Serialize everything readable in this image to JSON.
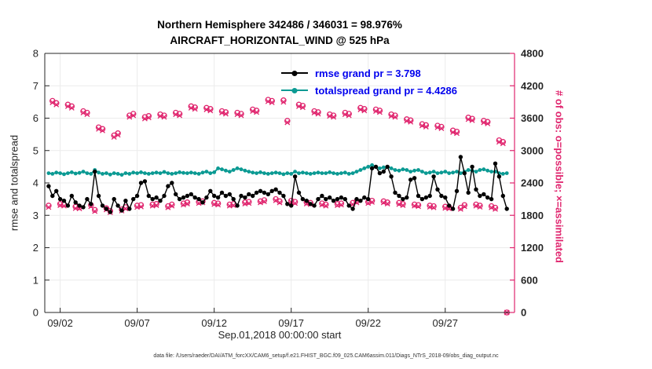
{
  "chart": {
    "title1": "Northern Hemisphere 342486 / 346031 = 98.976%",
    "title2": "AIRCRAFT_HORIZONTAL_WIND @ 525 hPa",
    "ylabel_left": "rmse and totalspread",
    "ylabel_right": "# of obs: o=possible; ×=assimilated",
    "xlabel": "Sep.01,2018 00:00:00 start",
    "footer": "data file: /Users/raeder/DAI/ATM_forcXX/CAM6_setup/f.e21.FHIST_BGC.f09_025.CAM6assim.011/Diags_NTrS_2018-09/obs_diag_output.nc",
    "legend": [
      {
        "label": "rmse grand pr = 3.798",
        "series": "rmse"
      },
      {
        "label": "totalspread grand pr = 4.4286",
        "series": "totalspread"
      }
    ]
  },
  "colors": {
    "rmse": "#000000",
    "totalspread": "#0b9a93",
    "obs": "#e0256e",
    "legend_text": "#0000ee",
    "axis": "#262626",
    "grid": "#ebebeb"
  },
  "chart_data": {
    "type": "line",
    "x_unit": "days since Sep 1 2018 00:00",
    "xlim": [
      0,
      30.5
    ],
    "ylim_left": [
      0,
      8
    ],
    "ylim_right": [
      0,
      4800
    ],
    "grid": true,
    "legend_position": "top-center",
    "xticks": {
      "positions": [
        1,
        6,
        11,
        16,
        21,
        26
      ],
      "labels": [
        "09/02",
        "09/07",
        "09/12",
        "09/17",
        "09/22",
        "09/27"
      ]
    },
    "yticks_left": [
      0,
      1,
      2,
      3,
      4,
      5,
      6,
      7,
      8
    ],
    "yticks_right": [
      0,
      600,
      1200,
      1800,
      2400,
      3000,
      3600,
      4200,
      4800
    ],
    "x_days": [
      0.25,
      0.5,
      0.75,
      1,
      1.25,
      1.5,
      1.75,
      2,
      2.25,
      2.5,
      2.75,
      3,
      3.25,
      3.5,
      3.75,
      4,
      4.25,
      4.5,
      4.75,
      5,
      5.25,
      5.5,
      5.75,
      6,
      6.25,
      6.5,
      6.75,
      7,
      7.25,
      7.5,
      7.75,
      8,
      8.25,
      8.5,
      8.75,
      9,
      9.25,
      9.5,
      9.75,
      10,
      10.25,
      10.5,
      10.75,
      11,
      11.25,
      11.5,
      11.75,
      12,
      12.25,
      12.5,
      12.75,
      13,
      13.25,
      13.5,
      13.75,
      14,
      14.25,
      14.5,
      14.75,
      15,
      15.25,
      15.5,
      15.75,
      16,
      16.25,
      16.5,
      16.75,
      17,
      17.25,
      17.5,
      17.75,
      18,
      18.25,
      18.5,
      18.75,
      19,
      19.25,
      19.5,
      19.75,
      20,
      20.25,
      20.5,
      20.75,
      21,
      21.25,
      21.5,
      21.75,
      22,
      22.25,
      22.5,
      22.75,
      23,
      23.25,
      23.5,
      23.75,
      24,
      24.25,
      24.5,
      24.75,
      25,
      25.25,
      25.5,
      25.75,
      26,
      26.25,
      26.5,
      26.75,
      27,
      27.25,
      27.5,
      27.75,
      28,
      28.25,
      28.5,
      28.75,
      29,
      29.25,
      29.5,
      29.75,
      30
    ],
    "series": [
      {
        "name": "rmse",
        "axis": "left",
        "color": "#000000",
        "marker": "dot",
        "line": true,
        "grand_value": 3.798,
        "values": [
          3.9,
          3.6,
          3.75,
          3.5,
          3.45,
          3.3,
          3.6,
          3.4,
          3.3,
          3.25,
          3.5,
          3.35,
          4.35,
          3.6,
          3.3,
          3.2,
          3.1,
          3.5,
          3.3,
          3.15,
          3.45,
          3.2,
          3.5,
          3.6,
          4.0,
          4.05,
          3.6,
          3.5,
          3.55,
          3.45,
          3.6,
          3.9,
          4.0,
          3.65,
          3.5,
          3.55,
          3.6,
          3.65,
          3.55,
          3.5,
          3.4,
          3.55,
          3.75,
          3.6,
          3.55,
          3.7,
          3.6,
          3.65,
          3.5,
          3.3,
          3.6,
          3.55,
          3.65,
          3.6,
          3.7,
          3.75,
          3.7,
          3.65,
          3.75,
          3.8,
          3.7,
          3.6,
          3.35,
          3.3,
          4.2,
          3.7,
          3.5,
          3.45,
          3.35,
          3.3,
          3.5,
          3.6,
          3.5,
          3.55,
          3.45,
          3.5,
          3.55,
          3.5,
          3.3,
          3.2,
          3.5,
          3.45,
          3.55,
          3.5,
          4.45,
          4.5,
          4.3,
          4.35,
          4.5,
          4.2,
          3.7,
          3.6,
          3.5,
          3.55,
          4.1,
          4.15,
          3.6,
          3.5,
          3.55,
          3.6,
          4.2,
          3.8,
          3.6,
          3.55,
          3.3,
          3.2,
          3.75,
          4.8,
          4.3,
          3.7,
          4.5,
          3.8,
          3.6,
          3.65,
          3.55,
          3.5,
          4.6,
          4.2,
          3.6,
          3.2
        ]
      },
      {
        "name": "totalspread",
        "axis": "left",
        "color": "#0b9a93",
        "marker": "dot",
        "line": true,
        "grand_value": 4.4286,
        "values": [
          4.3,
          4.28,
          4.32,
          4.3,
          4.27,
          4.3,
          4.33,
          4.29,
          4.31,
          4.35,
          4.3,
          4.28,
          4.4,
          4.32,
          4.28,
          4.3,
          4.26,
          4.3,
          4.28,
          4.25,
          4.3,
          4.28,
          4.32,
          4.3,
          4.33,
          4.3,
          4.28,
          4.3,
          4.32,
          4.3,
          4.34,
          4.3,
          4.28,
          4.3,
          4.33,
          4.31,
          4.3,
          4.32,
          4.3,
          4.28,
          4.32,
          4.35,
          4.3,
          4.33,
          4.45,
          4.42,
          4.38,
          4.35,
          4.4,
          4.45,
          4.42,
          4.38,
          4.35,
          4.32,
          4.3,
          4.33,
          4.3,
          4.28,
          4.3,
          4.32,
          4.3,
          4.27,
          4.3,
          4.28,
          4.35,
          4.3,
          4.32,
          4.3,
          4.28,
          4.3,
          4.32,
          4.3,
          4.3,
          4.33,
          4.3,
          4.28,
          4.3,
          4.32,
          4.28,
          4.3,
          4.35,
          4.4,
          4.45,
          4.5,
          4.55,
          4.5,
          4.45,
          4.48,
          4.5,
          4.45,
          4.4,
          4.38,
          4.42,
          4.4,
          4.35,
          4.38,
          4.4,
          4.35,
          4.3,
          4.32,
          4.35,
          4.3,
          4.32,
          4.35,
          4.3,
          4.32,
          4.35,
          4.3,
          4.35,
          4.4,
          4.38,
          4.35,
          4.4,
          4.42,
          4.38,
          4.35,
          4.35,
          4.3,
          4.28,
          4.3
        ]
      },
      {
        "name": "possible",
        "axis": "right",
        "color": "#e0256e",
        "marker": "o",
        "line": false,
        "values": [
          1980,
          3920,
          3880,
          2010,
          2000,
          3850,
          3820,
          1960,
          1950,
          3730,
          3700,
          1990,
          1900,
          3430,
          3400,
          1930,
          1880,
          3280,
          3320,
          1910,
          1950,
          3650,
          3680,
          1980,
          1990,
          3620,
          3640,
          2000,
          2010,
          3670,
          3650,
          1970,
          2000,
          3700,
          3680,
          2020,
          2040,
          3820,
          3800,
          2050,
          2060,
          3790,
          3770,
          2030,
          2020,
          3730,
          3710,
          2000,
          2010,
          3700,
          3680,
          2040,
          2050,
          3760,
          3740,
          2060,
          2080,
          3940,
          3920,
          2100,
          2060,
          3930,
          3550,
          2070,
          2050,
          3850,
          3830,
          2040,
          2030,
          3730,
          3710,
          2020,
          2000,
          3670,
          3650,
          2010,
          2020,
          3700,
          3680,
          2030,
          2060,
          3790,
          3770,
          2050,
          2070,
          3760,
          3740,
          2060,
          2040,
          3670,
          3650,
          2030,
          2010,
          3580,
          3560,
          2000,
          1990,
          3490,
          3470,
          1980,
          1970,
          3460,
          3440,
          1960,
          1950,
          3370,
          3350,
          1940,
          1990,
          3610,
          3590,
          2000,
          1980,
          3550,
          3530,
          1970,
          1940,
          3190,
          3160,
          0
        ]
      },
      {
        "name": "assimilated",
        "axis": "right",
        "color": "#e0256e",
        "marker": "x",
        "line": false,
        "values": [
          1950,
          3890,
          3850,
          1985,
          1975,
          3820,
          3790,
          1930,
          1925,
          3700,
          3670,
          1965,
          1875,
          3400,
          3370,
          1905,
          1855,
          3250,
          3290,
          1885,
          1925,
          3620,
          3650,
          1950,
          1960,
          3590,
          3610,
          1975,
          1985,
          3640,
          3620,
          1945,
          1975,
          3670,
          3650,
          1995,
          2015,
          3790,
          3770,
          2025,
          2035,
          3760,
          3740,
          2005,
          1995,
          3700,
          3680,
          1975,
          1985,
          3670,
          3650,
          2015,
          2025,
          3730,
          3710,
          2035,
          2055,
          3910,
          3890,
          2075,
          2035,
          3900,
          3520,
          2045,
          2025,
          3820,
          3800,
          2015,
          2005,
          3700,
          3680,
          1995,
          1975,
          3640,
          3620,
          1985,
          1995,
          3670,
          3650,
          2005,
          2035,
          3760,
          3740,
          2025,
          2045,
          3730,
          3710,
          2035,
          2015,
          3640,
          3620,
          2005,
          1985,
          3550,
          3530,
          1975,
          1965,
          3460,
          3440,
          1955,
          1945,
          3430,
          3410,
          1935,
          1925,
          3340,
          3320,
          1915,
          1965,
          3580,
          3560,
          1975,
          1955,
          3520,
          3500,
          1945,
          1915,
          3160,
          3130,
          0
        ]
      }
    ]
  }
}
